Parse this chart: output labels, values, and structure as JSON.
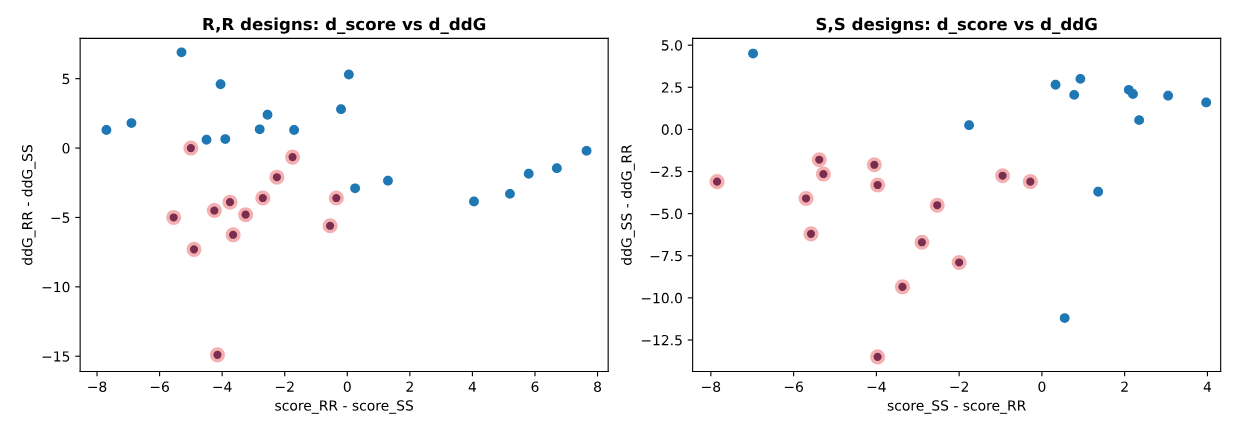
{
  "chart_data": [
    {
      "type": "scatter",
      "title": "R,R designs: d_score vs d_ddG",
      "xlabel": "score_RR - score_SS",
      "ylabel": "ddG_RR - ddG_SS",
      "xlim": [
        -8.54,
        8.34
      ],
      "ylim": [
        -16.1,
        7.9
      ],
      "xticks": [
        {
          "value": -8,
          "label": "−8"
        },
        {
          "value": -6,
          "label": "−6"
        },
        {
          "value": -4,
          "label": "−4"
        },
        {
          "value": -2,
          "label": "−2"
        },
        0,
        2,
        4,
        6,
        8
      ],
      "yticks": [
        {
          "value": -15,
          "label": "−15"
        },
        {
          "value": -10,
          "label": "−10"
        },
        {
          "value": -5,
          "label": "−5"
        },
        0,
        5
      ],
      "grid": false,
      "legend": false,
      "marker": "circle",
      "series": [
        {
          "color": "#1f77b4",
          "x": [
            -7.7,
            -6.9,
            -5.3,
            -4.05,
            -4.5,
            -3.9,
            -2.8,
            -2.55,
            -1.7,
            -0.2,
            0.05,
            0.25,
            1.3,
            4.05,
            5.2,
            5.8,
            6.7,
            7.65
          ],
          "values": [
            1.3,
            1.8,
            6.9,
            4.6,
            0.6,
            0.65,
            1.35,
            2.4,
            1.3,
            2.8,
            5.3,
            -2.9,
            -2.35,
            -3.85,
            -3.3,
            -1.85,
            -1.45,
            -0.2
          ]
        },
        {
          "color": "#7b2d4f",
          "x": [
            -5.0,
            -1.75,
            -2.25,
            -2.7,
            -3.75,
            -4.25,
            -3.25,
            -3.65,
            -5.55,
            -4.9,
            -0.35,
            -0.55,
            -4.15
          ],
          "values": [
            0,
            -0.65,
            -2.1,
            -3.6,
            -3.9,
            -4.5,
            -4.8,
            -6.25,
            -5.0,
            -7.3,
            -3.6,
            -5.6,
            -14.9
          ]
        }
      ]
    },
    {
      "type": "scatter",
      "title": "S,S designs: d_score vs d_ddG",
      "xlabel": "score_SS - score_RR",
      "ylabel": "ddG_SS - ddG_RR",
      "xlim": [
        -8.44,
        4.32
      ],
      "ylim": [
        -14.37,
        5.4
      ],
      "xticks": [
        {
          "value": -8,
          "label": "−8"
        },
        {
          "value": -6,
          "label": "−6"
        },
        {
          "value": -4,
          "label": "−4"
        },
        {
          "value": -2,
          "label": "−2"
        },
        0,
        2,
        4
      ],
      "yticks": [
        {
          "value": -12.5,
          "label": "−12.5"
        },
        {
          "value": -10,
          "label": "−10.0"
        },
        {
          "value": -7.5,
          "label": "−7.5"
        },
        {
          "value": -5,
          "label": "−5.0"
        },
        {
          "value": -2.5,
          "label": "−2.5"
        },
        {
          "value": 0,
          "label": "0.0"
        },
        {
          "value": 2.5,
          "label": "2.5"
        },
        {
          "value": 5,
          "label": "5.0"
        }
      ],
      "grid": false,
      "legend": false,
      "marker": "circle",
      "series": [
        {
          "color": "#1f77b4",
          "x": [
            -6.98,
            -1.76,
            0.33,
            0.78,
            0.93,
            2.1,
            2.2,
            2.35,
            3.05,
            3.97,
            1.36,
            0.55
          ],
          "values": [
            4.5,
            0.25,
            2.65,
            2.05,
            3.0,
            2.35,
            2.1,
            0.55,
            2.0,
            1.6,
            -3.7,
            -11.2
          ]
        },
        {
          "color": "#7b2d4f",
          "x": [
            -7.85,
            -5.7,
            -5.58,
            -5.38,
            -5.28,
            -4.05,
            -3.97,
            -2.53,
            -2.9,
            -2.0,
            -3.37,
            -3.97,
            -0.95,
            -0.28
          ],
          "values": [
            -3.1,
            -4.1,
            -6.2,
            -1.8,
            -2.65,
            -2.1,
            -3.3,
            -4.5,
            -6.7,
            -7.9,
            -9.35,
            -13.5,
            -2.75,
            -3.1
          ]
        }
      ]
    }
  ]
}
